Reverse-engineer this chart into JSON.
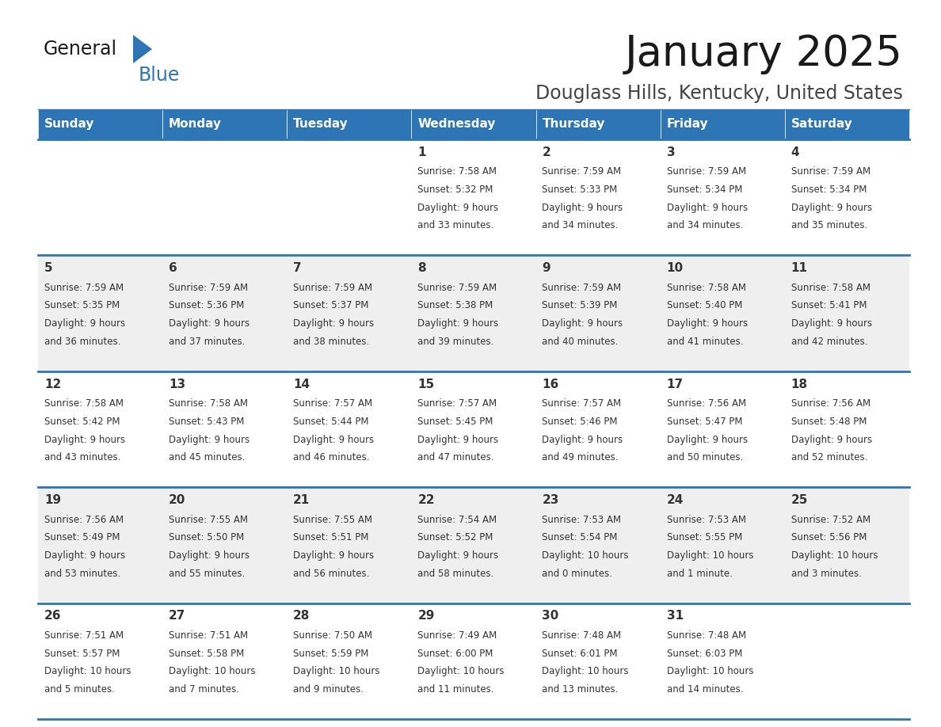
{
  "title": "January 2025",
  "subtitle": "Douglass Hills, Kentucky, United States",
  "header_color": "#2E75B6",
  "header_text_color": "#FFFFFF",
  "cell_bg_even": "#FFFFFF",
  "cell_bg_odd": "#EFEFEF",
  "separator_color": "#2E75B6",
  "text_color": "#333333",
  "days_of_week": [
    "Sunday",
    "Monday",
    "Tuesday",
    "Wednesday",
    "Thursday",
    "Friday",
    "Saturday"
  ],
  "calendar_data": [
    [
      {
        "day": "",
        "sunrise": "",
        "sunset": "",
        "daylight": ""
      },
      {
        "day": "",
        "sunrise": "",
        "sunset": "",
        "daylight": ""
      },
      {
        "day": "",
        "sunrise": "",
        "sunset": "",
        "daylight": ""
      },
      {
        "day": "1",
        "sunrise": "7:58 AM",
        "sunset": "5:32 PM",
        "daylight_line1": "Daylight: 9 hours",
        "daylight_line2": "and 33 minutes."
      },
      {
        "day": "2",
        "sunrise": "7:59 AM",
        "sunset": "5:33 PM",
        "daylight_line1": "Daylight: 9 hours",
        "daylight_line2": "and 34 minutes."
      },
      {
        "day": "3",
        "sunrise": "7:59 AM",
        "sunset": "5:34 PM",
        "daylight_line1": "Daylight: 9 hours",
        "daylight_line2": "and 34 minutes."
      },
      {
        "day": "4",
        "sunrise": "7:59 AM",
        "sunset": "5:34 PM",
        "daylight_line1": "Daylight: 9 hours",
        "daylight_line2": "and 35 minutes."
      }
    ],
    [
      {
        "day": "5",
        "sunrise": "7:59 AM",
        "sunset": "5:35 PM",
        "daylight_line1": "Daylight: 9 hours",
        "daylight_line2": "and 36 minutes."
      },
      {
        "day": "6",
        "sunrise": "7:59 AM",
        "sunset": "5:36 PM",
        "daylight_line1": "Daylight: 9 hours",
        "daylight_line2": "and 37 minutes."
      },
      {
        "day": "7",
        "sunrise": "7:59 AM",
        "sunset": "5:37 PM",
        "daylight_line1": "Daylight: 9 hours",
        "daylight_line2": "and 38 minutes."
      },
      {
        "day": "8",
        "sunrise": "7:59 AM",
        "sunset": "5:38 PM",
        "daylight_line1": "Daylight: 9 hours",
        "daylight_line2": "and 39 minutes."
      },
      {
        "day": "9",
        "sunrise": "7:59 AM",
        "sunset": "5:39 PM",
        "daylight_line1": "Daylight: 9 hours",
        "daylight_line2": "and 40 minutes."
      },
      {
        "day": "10",
        "sunrise": "7:58 AM",
        "sunset": "5:40 PM",
        "daylight_line1": "Daylight: 9 hours",
        "daylight_line2": "and 41 minutes."
      },
      {
        "day": "11",
        "sunrise": "7:58 AM",
        "sunset": "5:41 PM",
        "daylight_line1": "Daylight: 9 hours",
        "daylight_line2": "and 42 minutes."
      }
    ],
    [
      {
        "day": "12",
        "sunrise": "7:58 AM",
        "sunset": "5:42 PM",
        "daylight_line1": "Daylight: 9 hours",
        "daylight_line2": "and 43 minutes."
      },
      {
        "day": "13",
        "sunrise": "7:58 AM",
        "sunset": "5:43 PM",
        "daylight_line1": "Daylight: 9 hours",
        "daylight_line2": "and 45 minutes."
      },
      {
        "day": "14",
        "sunrise": "7:57 AM",
        "sunset": "5:44 PM",
        "daylight_line1": "Daylight: 9 hours",
        "daylight_line2": "and 46 minutes."
      },
      {
        "day": "15",
        "sunrise": "7:57 AM",
        "sunset": "5:45 PM",
        "daylight_line1": "Daylight: 9 hours",
        "daylight_line2": "and 47 minutes."
      },
      {
        "day": "16",
        "sunrise": "7:57 AM",
        "sunset": "5:46 PM",
        "daylight_line1": "Daylight: 9 hours",
        "daylight_line2": "and 49 minutes."
      },
      {
        "day": "17",
        "sunrise": "7:56 AM",
        "sunset": "5:47 PM",
        "daylight_line1": "Daylight: 9 hours",
        "daylight_line2": "and 50 minutes."
      },
      {
        "day": "18",
        "sunrise": "7:56 AM",
        "sunset": "5:48 PM",
        "daylight_line1": "Daylight: 9 hours",
        "daylight_line2": "and 52 minutes."
      }
    ],
    [
      {
        "day": "19",
        "sunrise": "7:56 AM",
        "sunset": "5:49 PM",
        "daylight_line1": "Daylight: 9 hours",
        "daylight_line2": "and 53 minutes."
      },
      {
        "day": "20",
        "sunrise": "7:55 AM",
        "sunset": "5:50 PM",
        "daylight_line1": "Daylight: 9 hours",
        "daylight_line2": "and 55 minutes."
      },
      {
        "day": "21",
        "sunrise": "7:55 AM",
        "sunset": "5:51 PM",
        "daylight_line1": "Daylight: 9 hours",
        "daylight_line2": "and 56 minutes."
      },
      {
        "day": "22",
        "sunrise": "7:54 AM",
        "sunset": "5:52 PM",
        "daylight_line1": "Daylight: 9 hours",
        "daylight_line2": "and 58 minutes."
      },
      {
        "day": "23",
        "sunrise": "7:53 AM",
        "sunset": "5:54 PM",
        "daylight_line1": "Daylight: 10 hours",
        "daylight_line2": "and 0 minutes."
      },
      {
        "day": "24",
        "sunrise": "7:53 AM",
        "sunset": "5:55 PM",
        "daylight_line1": "Daylight: 10 hours",
        "daylight_line2": "and 1 minute."
      },
      {
        "day": "25",
        "sunrise": "7:52 AM",
        "sunset": "5:56 PM",
        "daylight_line1": "Daylight: 10 hours",
        "daylight_line2": "and 3 minutes."
      }
    ],
    [
      {
        "day": "26",
        "sunrise": "7:51 AM",
        "sunset": "5:57 PM",
        "daylight_line1": "Daylight: 10 hours",
        "daylight_line2": "and 5 minutes."
      },
      {
        "day": "27",
        "sunrise": "7:51 AM",
        "sunset": "5:58 PM",
        "daylight_line1": "Daylight: 10 hours",
        "daylight_line2": "and 7 minutes."
      },
      {
        "day": "28",
        "sunrise": "7:50 AM",
        "sunset": "5:59 PM",
        "daylight_line1": "Daylight: 10 hours",
        "daylight_line2": "and 9 minutes."
      },
      {
        "day": "29",
        "sunrise": "7:49 AM",
        "sunset": "6:00 PM",
        "daylight_line1": "Daylight: 10 hours",
        "daylight_line2": "and 11 minutes."
      },
      {
        "day": "30",
        "sunrise": "7:48 AM",
        "sunset": "6:01 PM",
        "daylight_line1": "Daylight: 10 hours",
        "daylight_line2": "and 13 minutes."
      },
      {
        "day": "31",
        "sunrise": "7:48 AM",
        "sunset": "6:03 PM",
        "daylight_line1": "Daylight: 10 hours",
        "daylight_line2": "and 14 minutes."
      },
      {
        "day": "",
        "sunrise": "",
        "sunset": "",
        "daylight_line1": "",
        "daylight_line2": ""
      }
    ]
  ]
}
